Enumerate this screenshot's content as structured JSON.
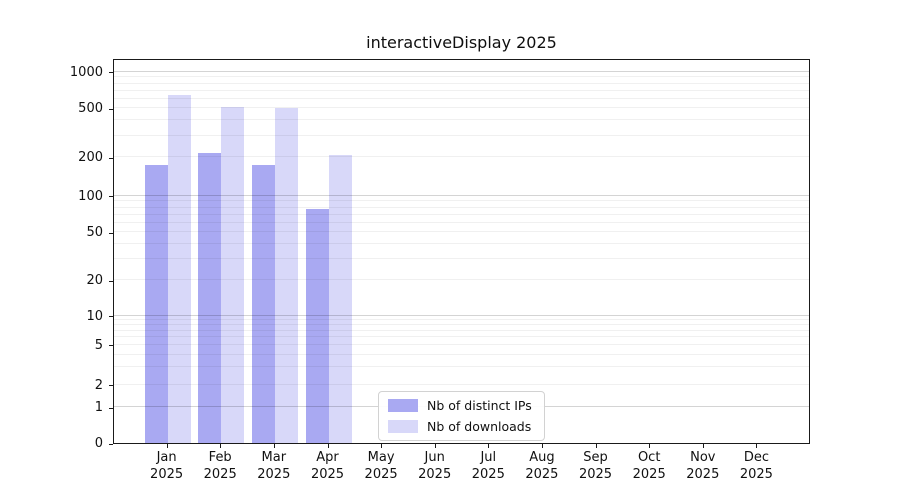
{
  "chart_data": {
    "type": "bar",
    "title": "interactiveDisplay 2025",
    "year_label": "2025",
    "categories": [
      "Jan",
      "Feb",
      "Mar",
      "Apr",
      "May",
      "Jun",
      "Jul",
      "Aug",
      "Sep",
      "Oct",
      "Nov",
      "Dec"
    ],
    "series": [
      {
        "name": "Nb of distinct IPs",
        "color": "#a9a9f2",
        "values": [
          175,
          215,
          175,
          78,
          null,
          null,
          null,
          null,
          null,
          null,
          null,
          null
        ]
      },
      {
        "name": "Nb of downloads",
        "color": "#d8d8f9",
        "values": [
          640,
          510,
          500,
          210,
          null,
          null,
          null,
          null,
          null,
          null,
          null,
          null
        ]
      }
    ],
    "y_axis": {
      "scale": "symlog",
      "ticks": [
        0,
        1,
        2,
        5,
        10,
        20,
        50,
        100,
        200,
        500,
        1000
      ],
      "major_grid_values": [
        1,
        10,
        100,
        1000
      ]
    },
    "grid": true,
    "legend_position": "inside-bottom-center",
    "colors": {
      "background": "#ffffff",
      "axis": "#1a1a1a",
      "text": "#111111"
    }
  }
}
